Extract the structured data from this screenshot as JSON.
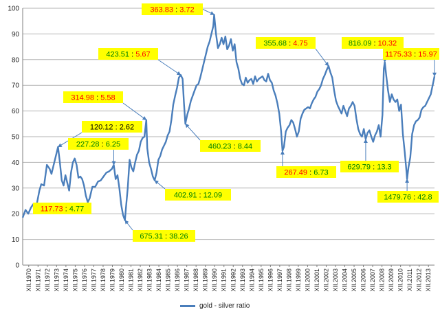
{
  "chart_data": {
    "type": "line",
    "title": "",
    "xlabel": "",
    "ylabel": "",
    "ylim": [
      0,
      100
    ],
    "yticks": [
      0,
      10,
      20,
      30,
      40,
      50,
      60,
      70,
      80,
      90,
      100
    ],
    "grid": true,
    "legend_position": "bottom",
    "x_tick_labels": [
      "XII.1970",
      "XII.1971",
      "XII.1972",
      "XII.1973",
      "XII.1974",
      "XII.1975",
      "XII.1976",
      "XII.1977",
      "XII.1978",
      "XII.1979",
      "XII.1980",
      "XII.1981",
      "XII.1982",
      "XII.1983",
      "XII.1984",
      "XII.1985",
      "XII.1986",
      "XII.1987",
      "XII.1988",
      "XII.1989",
      "XII.1990",
      "XII.1991",
      "XII.1992",
      "XII.1993",
      "XII.1994",
      "XII.1995",
      "XII.1996",
      "XII.1997",
      "XII.1998",
      "XII.1999",
      "XII.2000",
      "XII.2001",
      "XII.2002",
      "XII.2003",
      "XII.2004",
      "XII.2005",
      "XII.2006",
      "XII.2007",
      "XII.2008",
      "XII.2009",
      "XII.2010",
      "XII.2011",
      "XII.2012",
      "XII.2013"
    ],
    "x_range": [
      1970.0,
      2014.3
    ],
    "series": [
      {
        "name": "gold - silver ratio",
        "color": "#4a7ebb",
        "points": [
          [
            1970.0,
            18.5
          ],
          [
            1970.3,
            21.5
          ],
          [
            1970.6,
            20.0
          ],
          [
            1970.9,
            22.5
          ],
          [
            1971.2,
            24.0
          ],
          [
            1971.5,
            23.5
          ],
          [
            1971.8,
            29.0
          ],
          [
            1972.0,
            31.5
          ],
          [
            1972.3,
            31.0
          ],
          [
            1972.6,
            39.0
          ],
          [
            1972.9,
            37.5
          ],
          [
            1973.1,
            35.5
          ],
          [
            1973.3,
            38.5
          ],
          [
            1973.6,
            43.0
          ],
          [
            1973.8,
            46.0
          ],
          [
            1974.0,
            40.0
          ],
          [
            1974.2,
            33.0
          ],
          [
            1974.4,
            31.0
          ],
          [
            1974.6,
            35.0
          ],
          [
            1974.8,
            32.0
          ],
          [
            1975.0,
            29.0
          ],
          [
            1975.2,
            36.0
          ],
          [
            1975.4,
            40.0
          ],
          [
            1975.6,
            41.5
          ],
          [
            1975.8,
            39.0
          ],
          [
            1976.0,
            34.0
          ],
          [
            1976.2,
            34.5
          ],
          [
            1976.4,
            33.5
          ],
          [
            1976.6,
            31.0
          ],
          [
            1976.8,
            27.0
          ],
          [
            1977.0,
            24.5
          ],
          [
            1977.2,
            26.0
          ],
          [
            1977.5,
            30.5
          ],
          [
            1977.8,
            30.5
          ],
          [
            1978.1,
            32.5
          ],
          [
            1978.4,
            33.0
          ],
          [
            1978.7,
            34.5
          ],
          [
            1979.0,
            36.0
          ],
          [
            1979.3,
            36.5
          ],
          [
            1979.6,
            37.5
          ],
          [
            1979.8,
            39.0
          ],
          [
            1980.0,
            33.5
          ],
          [
            1980.2,
            35.0
          ],
          [
            1980.4,
            30.0
          ],
          [
            1980.6,
            23.5
          ],
          [
            1980.8,
            19.5
          ],
          [
            1981.0,
            17.5
          ],
          [
            1981.1,
            22.0
          ],
          [
            1981.3,
            30.0
          ],
          [
            1981.5,
            41.0
          ],
          [
            1981.7,
            38.0
          ],
          [
            1981.9,
            36.5
          ],
          [
            1982.1,
            40.0
          ],
          [
            1982.3,
            43.0
          ],
          [
            1982.5,
            44.5
          ],
          [
            1982.7,
            48.0
          ],
          [
            1982.9,
            49.5
          ],
          [
            1983.1,
            50.0
          ],
          [
            1983.3,
            56.5
          ],
          [
            1983.4,
            45.5
          ],
          [
            1983.6,
            40.0
          ],
          [
            1983.8,
            37.5
          ],
          [
            1984.0,
            34.5
          ],
          [
            1984.2,
            33.0
          ],
          [
            1984.4,
            36.0
          ],
          [
            1984.6,
            41.0
          ],
          [
            1984.8,
            42.5
          ],
          [
            1985.0,
            45.0
          ],
          [
            1985.2,
            46.5
          ],
          [
            1985.4,
            48.0
          ],
          [
            1985.6,
            50.5
          ],
          [
            1985.8,
            52.0
          ],
          [
            1986.0,
            56.5
          ],
          [
            1986.2,
            62.5
          ],
          [
            1986.4,
            66.0
          ],
          [
            1986.6,
            69.0
          ],
          [
            1986.8,
            73.0
          ],
          [
            1987.0,
            74.0
          ],
          [
            1987.2,
            72.5
          ],
          [
            1987.35,
            63.0
          ],
          [
            1987.5,
            55.0
          ],
          [
            1987.7,
            58.5
          ],
          [
            1987.9,
            61.0
          ],
          [
            1988.1,
            64.0
          ],
          [
            1988.3,
            66.0
          ],
          [
            1988.5,
            68.0
          ],
          [
            1988.7,
            70.0
          ],
          [
            1988.9,
            70.5
          ],
          [
            1989.1,
            73.0
          ],
          [
            1989.3,
            76.0
          ],
          [
            1989.5,
            79.0
          ],
          [
            1989.7,
            82.0
          ],
          [
            1989.9,
            85.0
          ],
          [
            1990.1,
            87.0
          ],
          [
            1990.3,
            90.0
          ],
          [
            1990.5,
            93.0
          ],
          [
            1990.6,
            97.5
          ],
          [
            1990.8,
            90.0
          ],
          [
            1991.0,
            84.5
          ],
          [
            1991.2,
            86.0
          ],
          [
            1991.4,
            88.5
          ],
          [
            1991.6,
            86.0
          ],
          [
            1991.8,
            89.0
          ],
          [
            1992.0,
            84.0
          ],
          [
            1992.2,
            85.5
          ],
          [
            1992.4,
            88.0
          ],
          [
            1992.6,
            83.5
          ],
          [
            1992.8,
            86.0
          ],
          [
            1993.0,
            79.0
          ],
          [
            1993.2,
            76.5
          ],
          [
            1993.4,
            72.5
          ],
          [
            1993.6,
            70.5
          ],
          [
            1993.8,
            70.0
          ],
          [
            1994.0,
            73.0
          ],
          [
            1994.2,
            71.0
          ],
          [
            1994.4,
            72.0
          ],
          [
            1994.6,
            72.5
          ],
          [
            1994.8,
            70.5
          ],
          [
            1995.0,
            73.5
          ],
          [
            1995.2,
            71.5
          ],
          [
            1995.4,
            72.5
          ],
          [
            1995.6,
            73.0
          ],
          [
            1995.8,
            73.5
          ],
          [
            1996.0,
            72.0
          ],
          [
            1996.2,
            71.5
          ],
          [
            1996.4,
            74.5
          ],
          [
            1996.6,
            72.0
          ],
          [
            1996.8,
            71.0
          ],
          [
            1997.0,
            68.0
          ],
          [
            1997.2,
            66.0
          ],
          [
            1997.4,
            63.0
          ],
          [
            1997.6,
            59.0
          ],
          [
            1997.8,
            52.0
          ],
          [
            1997.95,
            44.5
          ],
          [
            1998.1,
            46.0
          ],
          [
            1998.3,
            52.0
          ],
          [
            1998.5,
            53.5
          ],
          [
            1998.7,
            54.5
          ],
          [
            1998.9,
            56.5
          ],
          [
            1999.1,
            55.5
          ],
          [
            1999.3,
            53.0
          ],
          [
            1999.5,
            50.0
          ],
          [
            1999.7,
            52.0
          ],
          [
            1999.9,
            57.0
          ],
          [
            2000.1,
            59.0
          ],
          [
            2000.3,
            60.5
          ],
          [
            2000.5,
            61.0
          ],
          [
            2000.7,
            61.5
          ],
          [
            2000.9,
            61.0
          ],
          [
            2001.1,
            63.0
          ],
          [
            2001.3,
            64.5
          ],
          [
            2001.5,
            65.5
          ],
          [
            2001.7,
            67.5
          ],
          [
            2001.9,
            68.5
          ],
          [
            2002.1,
            70.0
          ],
          [
            2002.3,
            72.5
          ],
          [
            2002.5,
            74.0
          ],
          [
            2002.7,
            76.0
          ],
          [
            2002.9,
            77.5
          ],
          [
            2003.1,
            75.0
          ],
          [
            2003.3,
            73.0
          ],
          [
            2003.5,
            68.0
          ],
          [
            2003.7,
            64.0
          ],
          [
            2003.9,
            62.0
          ],
          [
            2004.1,
            60.5
          ],
          [
            2004.3,
            59.0
          ],
          [
            2004.5,
            62.0
          ],
          [
            2004.7,
            60.0
          ],
          [
            2004.9,
            58.0
          ],
          [
            2005.1,
            61.0
          ],
          [
            2005.3,
            62.0
          ],
          [
            2005.5,
            63.5
          ],
          [
            2005.7,
            62.0
          ],
          [
            2005.9,
            57.0
          ],
          [
            2006.1,
            53.0
          ],
          [
            2006.3,
            51.0
          ],
          [
            2006.5,
            50.0
          ],
          [
            2006.7,
            53.0
          ],
          [
            2006.9,
            49.0
          ],
          [
            2007.1,
            51.5
          ],
          [
            2007.3,
            52.5
          ],
          [
            2007.5,
            50.0
          ],
          [
            2007.7,
            48.0
          ],
          [
            2007.9,
            50.5
          ],
          [
            2008.1,
            52.0
          ],
          [
            2008.3,
            54.5
          ],
          [
            2008.5,
            50.0
          ],
          [
            2008.7,
            58.5
          ],
          [
            2008.85,
            76.5
          ],
          [
            2008.95,
            79.0
          ],
          [
            2009.1,
            74.0
          ],
          [
            2009.3,
            68.0
          ],
          [
            2009.5,
            63.5
          ],
          [
            2009.7,
            66.5
          ],
          [
            2009.9,
            64.5
          ],
          [
            2010.1,
            63.5
          ],
          [
            2010.3,
            64.5
          ],
          [
            2010.5,
            60.0
          ],
          [
            2010.7,
            62.5
          ],
          [
            2010.9,
            51.0
          ],
          [
            2011.1,
            44.0
          ],
          [
            2011.3,
            36.0
          ],
          [
            2011.35,
            33.5
          ],
          [
            2011.5,
            38.0
          ],
          [
            2011.7,
            42.0
          ],
          [
            2011.9,
            51.0
          ],
          [
            2012.1,
            54.5
          ],
          [
            2012.3,
            56.0
          ],
          [
            2012.5,
            56.5
          ],
          [
            2012.7,
            57.5
          ],
          [
            2012.9,
            60.5
          ],
          [
            2013.1,
            61.5
          ],
          [
            2013.3,
            62.0
          ],
          [
            2013.5,
            63.5
          ],
          [
            2013.7,
            65.0
          ],
          [
            2013.9,
            66.5
          ],
          [
            2014.1,
            70.0
          ],
          [
            2014.3,
            73.5
          ]
        ]
      }
    ],
    "annotations": [
      {
        "id": "a1",
        "left": "120.12",
        "right": "2.62",
        "left_color": "#000000",
        "right_color": "#000000",
        "target": [
          1973.8,
          46.0
        ]
      },
      {
        "id": "a2",
        "left": "117.73",
        "right": "4.77",
        "left_color": "#ff0000",
        "right_color": "#008000",
        "target": [
          1977.0,
          24.5
        ]
      },
      {
        "id": "a3",
        "left": "227.28",
        "right": "6.25",
        "left_color": "#008000",
        "right_color": "#008000",
        "target": [
          1979.8,
          39.0
        ]
      },
      {
        "id": "a4",
        "left": "314.98",
        "right": "5.58",
        "left_color": "#ff0000",
        "right_color": "#ff0000",
        "target": [
          1983.3,
          56.5
        ]
      },
      {
        "id": "a5",
        "left": "675.31",
        "right": "38.26",
        "left_color": "#008000",
        "right_color": "#008000",
        "target": [
          1981.0,
          17.5
        ]
      },
      {
        "id": "a6",
        "left": "402.91",
        "right": "12.09",
        "left_color": "#008000",
        "right_color": "#008000",
        "target": [
          1984.2,
          33.0
        ]
      },
      {
        "id": "a7",
        "left": "423.51",
        "right": "5.67",
        "left_color": "#008000",
        "right_color": "#ff0000",
        "target": [
          1987.0,
          74.0
        ]
      },
      {
        "id": "a8",
        "left": "460.23",
        "right": "8.44",
        "left_color": "#008000",
        "right_color": "#008000",
        "target": [
          1987.5,
          55.0
        ]
      },
      {
        "id": "a9",
        "left": "363.83",
        "right": "3.72",
        "left_color": "#ff0000",
        "right_color": "#ff0000",
        "target": [
          1990.6,
          97.5
        ]
      },
      {
        "id": "a10",
        "left": "355.68",
        "right": "4.75",
        "left_color": "#008000",
        "right_color": "#ff0000",
        "target": [
          2002.9,
          77.5
        ]
      },
      {
        "id": "a11",
        "left": "267.49",
        "right": "6.73",
        "left_color": "#ff0000",
        "right_color": "#008000",
        "target": [
          1997.95,
          44.5
        ]
      },
      {
        "id": "a12",
        "left": "816.09",
        "right": "10.32",
        "left_color": "#008000",
        "right_color": "#ff0000",
        "target": [
          2008.95,
          79.0
        ]
      },
      {
        "id": "a13",
        "left": "629.79",
        "right": "13.3",
        "left_color": "#008000",
        "right_color": "#008000",
        "target": [
          2006.9,
          49.0
        ]
      },
      {
        "id": "a14",
        "left": "1175.33",
        "right": "15.97",
        "left_color": "#ff0000",
        "right_color": "#ff0000",
        "target": [
          2014.3,
          73.5
        ]
      },
      {
        "id": "a15",
        "left": "1479.76",
        "right": "42.8",
        "left_color": "#008000",
        "right_color": "#008000",
        "target": [
          2011.35,
          33.5
        ]
      }
    ],
    "colors": {
      "line": "#4a7ebb",
      "label_bg": "#ffff00",
      "grid": "#b3b3b3"
    }
  }
}
